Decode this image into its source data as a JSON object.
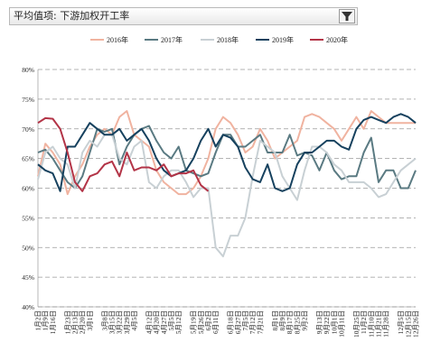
{
  "filter": {
    "label": "平均值项: 下游加权开工率",
    "icon": "filter-dropdown-icon"
  },
  "chart_data": {
    "type": "line",
    "title": "",
    "xlabel": "",
    "ylabel": "",
    "ylim": [
      40,
      80
    ],
    "yticks": [
      "40%",
      "45%",
      "50%",
      "55%",
      "60%",
      "65%",
      "70%",
      "75%",
      "80%"
    ],
    "grid": "horizontal dashed",
    "legend_position": "top",
    "x_tick_labels": [
      "1月2日",
      "1月9日",
      "1月16日",
      "1月23日",
      "2月13日",
      "2月20日",
      "3月1日",
      "3月8日",
      "3月15日",
      "3月22日",
      "3月29日",
      "4月5日",
      "4月12日",
      "4月20日",
      "4月27日",
      "5月5日",
      "5月12日",
      "5月19日",
      "5月26日",
      "6月2日",
      "6月11日",
      "6月18日",
      "6月27日",
      "7月5日",
      "7月12日",
      "7月21日",
      "8月1日",
      "8月9日",
      "8月17日",
      "8月25日",
      "9月2日",
      "9月13日",
      "9月22日",
      "10月1日",
      "10月11日",
      "10月25日",
      "11月2日",
      "11月10日",
      "11月21日",
      "11月28日",
      "12月5日",
      "12月15日",
      "12月26日"
    ],
    "x_count": 52,
    "series": [
      {
        "name": "2016年",
        "color": "#f0b3a0",
        "values": [
          62,
          67.5,
          66,
          64,
          59,
          62,
          64,
          67,
          69,
          70,
          69,
          72,
          73,
          69,
          68,
          67,
          63,
          61,
          60,
          59,
          59,
          60,
          62,
          65,
          70,
          72,
          71,
          69,
          66,
          67,
          70,
          68,
          65,
          66,
          67,
          68,
          72,
          72.5,
          72,
          71,
          70,
          68,
          70,
          72,
          70,
          73,
          72,
          71,
          71,
          71,
          71,
          71
        ]
      },
      {
        "name": "2017年",
        "color": "#5a7a82",
        "values": [
          66,
          66.5,
          65,
          63,
          61,
          60,
          62,
          66,
          70,
          69.5,
          70,
          64,
          67,
          69,
          70,
          70.5,
          68,
          66,
          65,
          67,
          63,
          62.5,
          62,
          62.5,
          66,
          69,
          69,
          67,
          67,
          68,
          69,
          66,
          66,
          66,
          69,
          65.5,
          66,
          65.5,
          63,
          66,
          63,
          61.5,
          62,
          62,
          66,
          68.5,
          61,
          63,
          63,
          60,
          60,
          63
        ]
      },
      {
        "name": "2018年",
        "color": "#c8d0d4",
        "values": [
          61.5,
          66,
          67,
          65,
          64,
          60,
          66,
          68,
          67,
          69,
          69,
          65,
          64,
          67,
          68,
          61,
          60,
          62,
          63,
          63,
          61,
          58.5,
          60,
          60,
          50,
          48.5,
          52,
          52,
          55,
          62,
          68,
          67,
          66,
          62,
          60,
          58,
          63,
          67,
          67,
          66,
          64,
          63,
          61,
          61,
          61,
          60,
          58.5,
          59,
          61,
          63,
          64,
          65
        ]
      },
      {
        "name": "2019年",
        "color": "#16415e",
        "values": [
          64,
          63,
          62.5,
          59.5,
          67,
          67,
          69,
          71,
          70,
          69,
          69,
          70,
          68,
          69,
          70,
          68,
          65,
          63,
          62,
          62.5,
          63,
          65,
          68,
          70,
          67,
          69,
          68.5,
          67,
          63.5,
          61.5,
          61,
          64,
          60,
          59.5,
          60,
          64,
          66,
          66,
          67,
          68,
          68,
          67,
          66.5,
          70,
          71.5,
          72,
          71.5,
          71,
          72,
          72.5,
          72,
          71
        ]
      },
      {
        "name": "2020年",
        "color": "#b33447",
        "values": [
          71,
          71.8,
          71.7,
          70,
          66,
          61,
          59.5,
          62,
          62.5,
          64,
          64.5,
          62,
          66,
          63,
          63.5,
          63.5,
          63,
          64,
          62,
          62.5,
          62.5,
          63,
          60.5,
          59.5
        ]
      }
    ]
  }
}
